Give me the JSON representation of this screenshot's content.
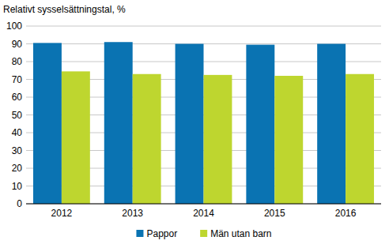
{
  "chart_data": {
    "type": "bar",
    "y_label": "Relativt sysselsättningstal, %",
    "categories": [
      "2012",
      "2013",
      "2014",
      "2015",
      "2016"
    ],
    "series": [
      {
        "name": "Pappor",
        "color": "#0a73b2",
        "values": [
          90.5,
          91,
          90,
          89.5,
          90
        ]
      },
      {
        "name": "Män utan barn",
        "color": "#bed62f",
        "values": [
          74.5,
          73,
          72.5,
          72,
          73
        ]
      }
    ],
    "ylim": [
      0,
      100
    ],
    "yticks": [
      0,
      10,
      20,
      30,
      40,
      50,
      60,
      70,
      80,
      90,
      100
    ],
    "grid": true,
    "legend": "bottom"
  }
}
